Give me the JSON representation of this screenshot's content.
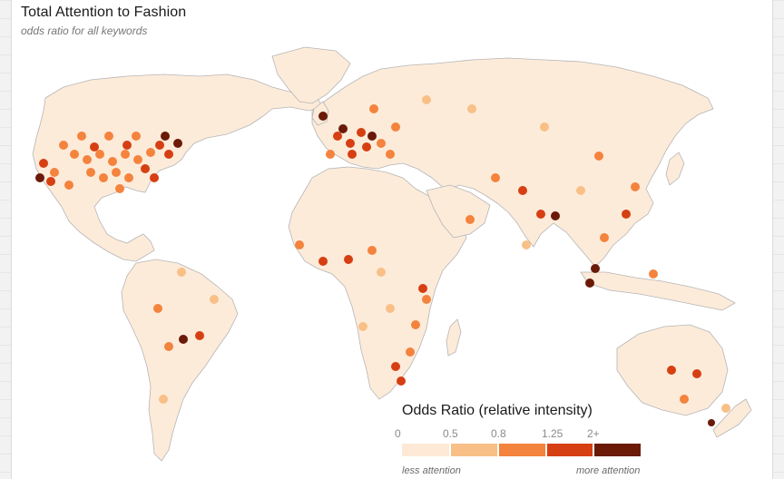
{
  "title": "Total Attention to Fashion",
  "subtitle": "odds ratio for all keywords",
  "legend": {
    "title": "Odds Ratio (relative intensity)",
    "ticks": [
      "0",
      "0.5",
      "0.8",
      "1.25",
      "2+"
    ],
    "less_label": "less attention",
    "more_label": "more attention",
    "colors": [
      "#fde9d6",
      "#f8c087",
      "#f4833d",
      "#d63f12",
      "#6b1a08"
    ]
  },
  "colors": {
    "land": "#fdebda",
    "coast": "#b5b5b5",
    "background": "#ffffff"
  }
}
